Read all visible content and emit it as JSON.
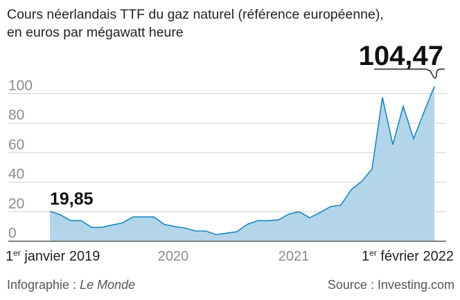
{
  "title_line1": "Cours néerlandais TTF du gaz naturel (référence européenne),",
  "title_line2": "en euros par mégawatt heure",
  "footer": {
    "credit_label": "Infographie : ",
    "credit_name": "Le Monde",
    "source": "Source : Investing.com"
  },
  "chart_data": {
    "type": "area",
    "title": "Cours néerlandais TTF du gaz naturel (référence européenne), en euros par mégawatt heure",
    "ylim": [
      0,
      100
    ],
    "yticks": [
      "0",
      "20",
      "40",
      "60",
      "80",
      "100"
    ],
    "grid": true,
    "x_labels": {
      "start_sup": "er",
      "start_pre": "1",
      "start": " janvier 2019",
      "y2020": "2020",
      "y2021": "2021",
      "end_pre": "1",
      "end_sup": "er",
      "end": " février 2022"
    },
    "x": [
      "2019-01",
      "2019-02",
      "2019-03",
      "2019-04",
      "2019-05",
      "2019-06",
      "2019-07",
      "2019-08",
      "2019-09",
      "2019-10",
      "2019-11",
      "2019-12",
      "2020-01",
      "2020-02",
      "2020-03",
      "2020-04",
      "2020-05",
      "2020-06",
      "2020-07",
      "2020-08",
      "2020-09",
      "2020-10",
      "2020-11",
      "2020-12",
      "2021-01",
      "2021-02",
      "2021-03",
      "2021-04",
      "2021-05",
      "2021-06",
      "2021-07",
      "2021-08",
      "2021-09",
      "2021-10",
      "2021-11",
      "2021-12",
      "2022-01",
      "2022-02"
    ],
    "values": [
      19.85,
      17.5,
      13.5,
      13.5,
      9,
      9,
      10.5,
      12,
      16,
      16,
      16,
      11,
      9.5,
      8.5,
      6.5,
      6.5,
      4,
      5,
      6,
      11,
      13.5,
      13.5,
      14,
      18,
      19.5,
      15.5,
      19,
      23,
      24,
      34.5,
      40,
      48.5,
      97,
      65,
      91,
      69,
      87,
      104.47
    ],
    "annotations": {
      "start": "19,85",
      "end": "104,47"
    },
    "colors": {
      "fill": "#b3d5ea",
      "line": "#1a86bd",
      "grid": "#cfcfcf",
      "axis": "#555555"
    }
  }
}
